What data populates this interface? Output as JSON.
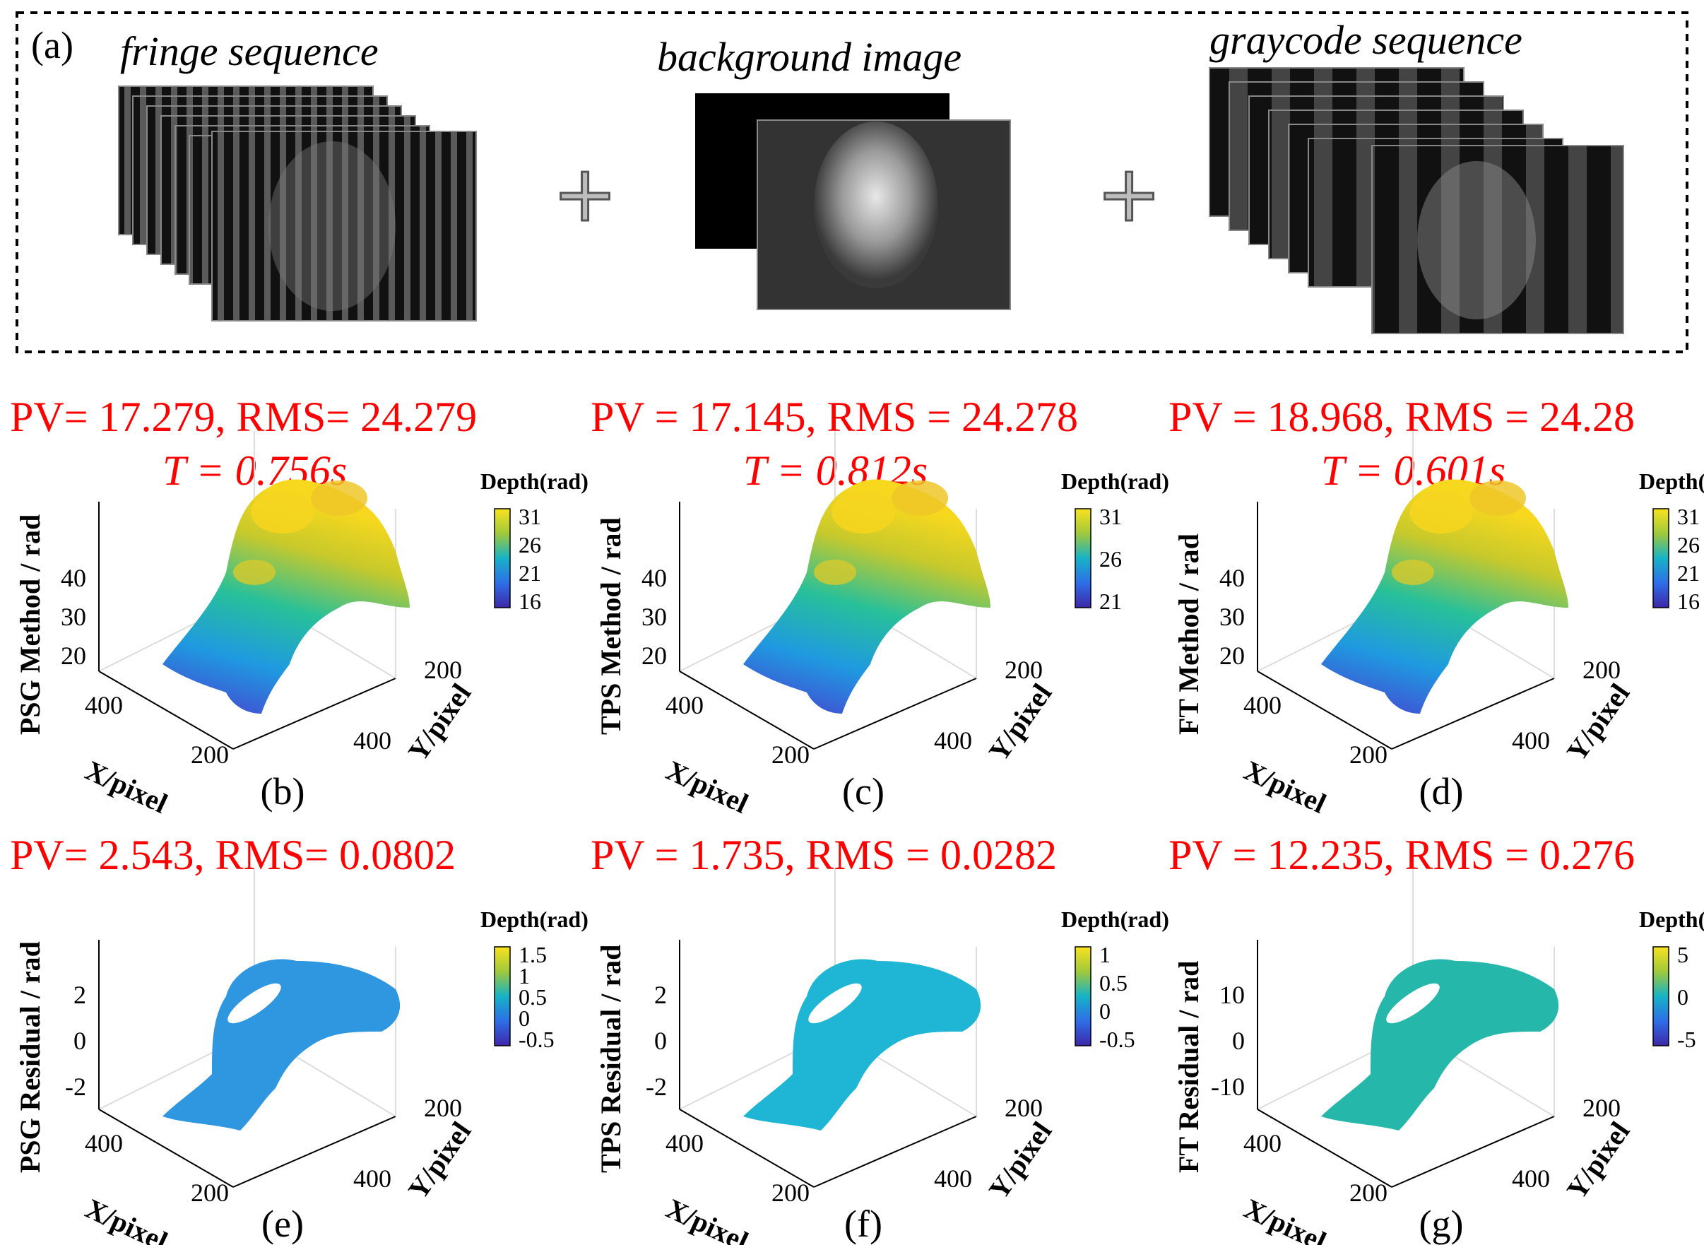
{
  "panel_a": {
    "label": "(a)",
    "stacks": [
      {
        "title": "fringe sequence"
      },
      {
        "title": "background image"
      },
      {
        "title": "graycode sequence"
      }
    ]
  },
  "panels": [
    {
      "id": "b",
      "label": "(b)",
      "metric_line1": "PV= 17.279, RMS= 24.279",
      "metric_line2": "T = 0.756s",
      "zlabel": "PSG  Method / rad",
      "xlabel": "X/pixel",
      "ylabel": "Y/pixel",
      "zticks": [
        "40",
        "30",
        "20"
      ],
      "xticks": [
        "400",
        "200"
      ],
      "yticks": [
        "200",
        "400"
      ],
      "cb_title": "Depth(rad)",
      "cb_ticks": [
        "31",
        "26",
        "21",
        "16"
      ],
      "kind": "depth"
    },
    {
      "id": "c",
      "label": "(c)",
      "metric_line1": "PV = 17.145, RMS = 24.278",
      "metric_line2": "T = 0.812s",
      "zlabel": "TPS  Method / rad",
      "xlabel": "X/pixel",
      "ylabel": "Y/pixel",
      "zticks": [
        "40",
        "30",
        "20"
      ],
      "xticks": [
        "400",
        "200"
      ],
      "yticks": [
        "200",
        "400"
      ],
      "cb_title": "Depth(rad)",
      "cb_ticks": [
        "31",
        "26",
        "21"
      ],
      "kind": "depth"
    },
    {
      "id": "d",
      "label": "(d)",
      "metric_line1": "PV = 18.968, RMS = 24.28",
      "metric_line2": "T = 0.601s",
      "zlabel": "FT  Method / rad",
      "xlabel": "X/pixel",
      "ylabel": "Y/pixel",
      "zticks": [
        "40",
        "30",
        "20"
      ],
      "xticks": [
        "400",
        "200"
      ],
      "yticks": [
        "200",
        "400"
      ],
      "cb_title": "Depth(rad)",
      "cb_ticks": [
        "31",
        "26",
        "21",
        "16"
      ],
      "kind": "depth"
    },
    {
      "id": "e",
      "label": "(e)",
      "metric_line1": "PV= 2.543, RMS= 0.0802",
      "metric_line2": "",
      "zlabel": "PSG  Residual / rad",
      "xlabel": "X/pixel",
      "ylabel": "Y/pixel",
      "zticks": [
        "2",
        "0",
        "-2"
      ],
      "xticks": [
        "400",
        "200"
      ],
      "yticks": [
        "200",
        "400"
      ],
      "cb_title": "Depth(rad)",
      "cb_ticks": [
        "1.5",
        "1",
        "0.5",
        "0",
        "-0.5"
      ],
      "kind": "residual",
      "residual_color": "#2f96e0"
    },
    {
      "id": "f",
      "label": "(f)",
      "metric_line1": "PV = 1.735, RMS = 0.0282",
      "metric_line2": "",
      "zlabel": "TPS  Residual / rad",
      "xlabel": "X/pixel",
      "ylabel": "Y/pixel",
      "zticks": [
        "2",
        "0",
        "-2"
      ],
      "xticks": [
        "400",
        "200"
      ],
      "yticks": [
        "200",
        "400"
      ],
      "cb_title": "Depth(rad)",
      "cb_ticks": [
        "1",
        "0.5",
        "0",
        "-0.5"
      ],
      "kind": "residual",
      "residual_color": "#1fb5d4"
    },
    {
      "id": "g",
      "label": "(g)",
      "metric_line1": "PV = 12.235, RMS = 0.276",
      "metric_line2": "",
      "zlabel": "FT  Residual / rad",
      "xlabel": "X/pixel",
      "ylabel": "Y/pixel",
      "zticks": [
        "10",
        "0",
        "-10"
      ],
      "xticks": [
        "400",
        "200"
      ],
      "yticks": [
        "200",
        "400"
      ],
      "cb_title": "Depth(rad)",
      "cb_ticks": [
        "5",
        "0",
        "-5"
      ],
      "kind": "residual",
      "residual_color": "#25b8aa"
    }
  ],
  "colors": {
    "metric": "#ff0000",
    "parula_top": "#f9e21f",
    "parula_mid": "#21b3b0",
    "parula_bottom": "#3d27a6"
  }
}
